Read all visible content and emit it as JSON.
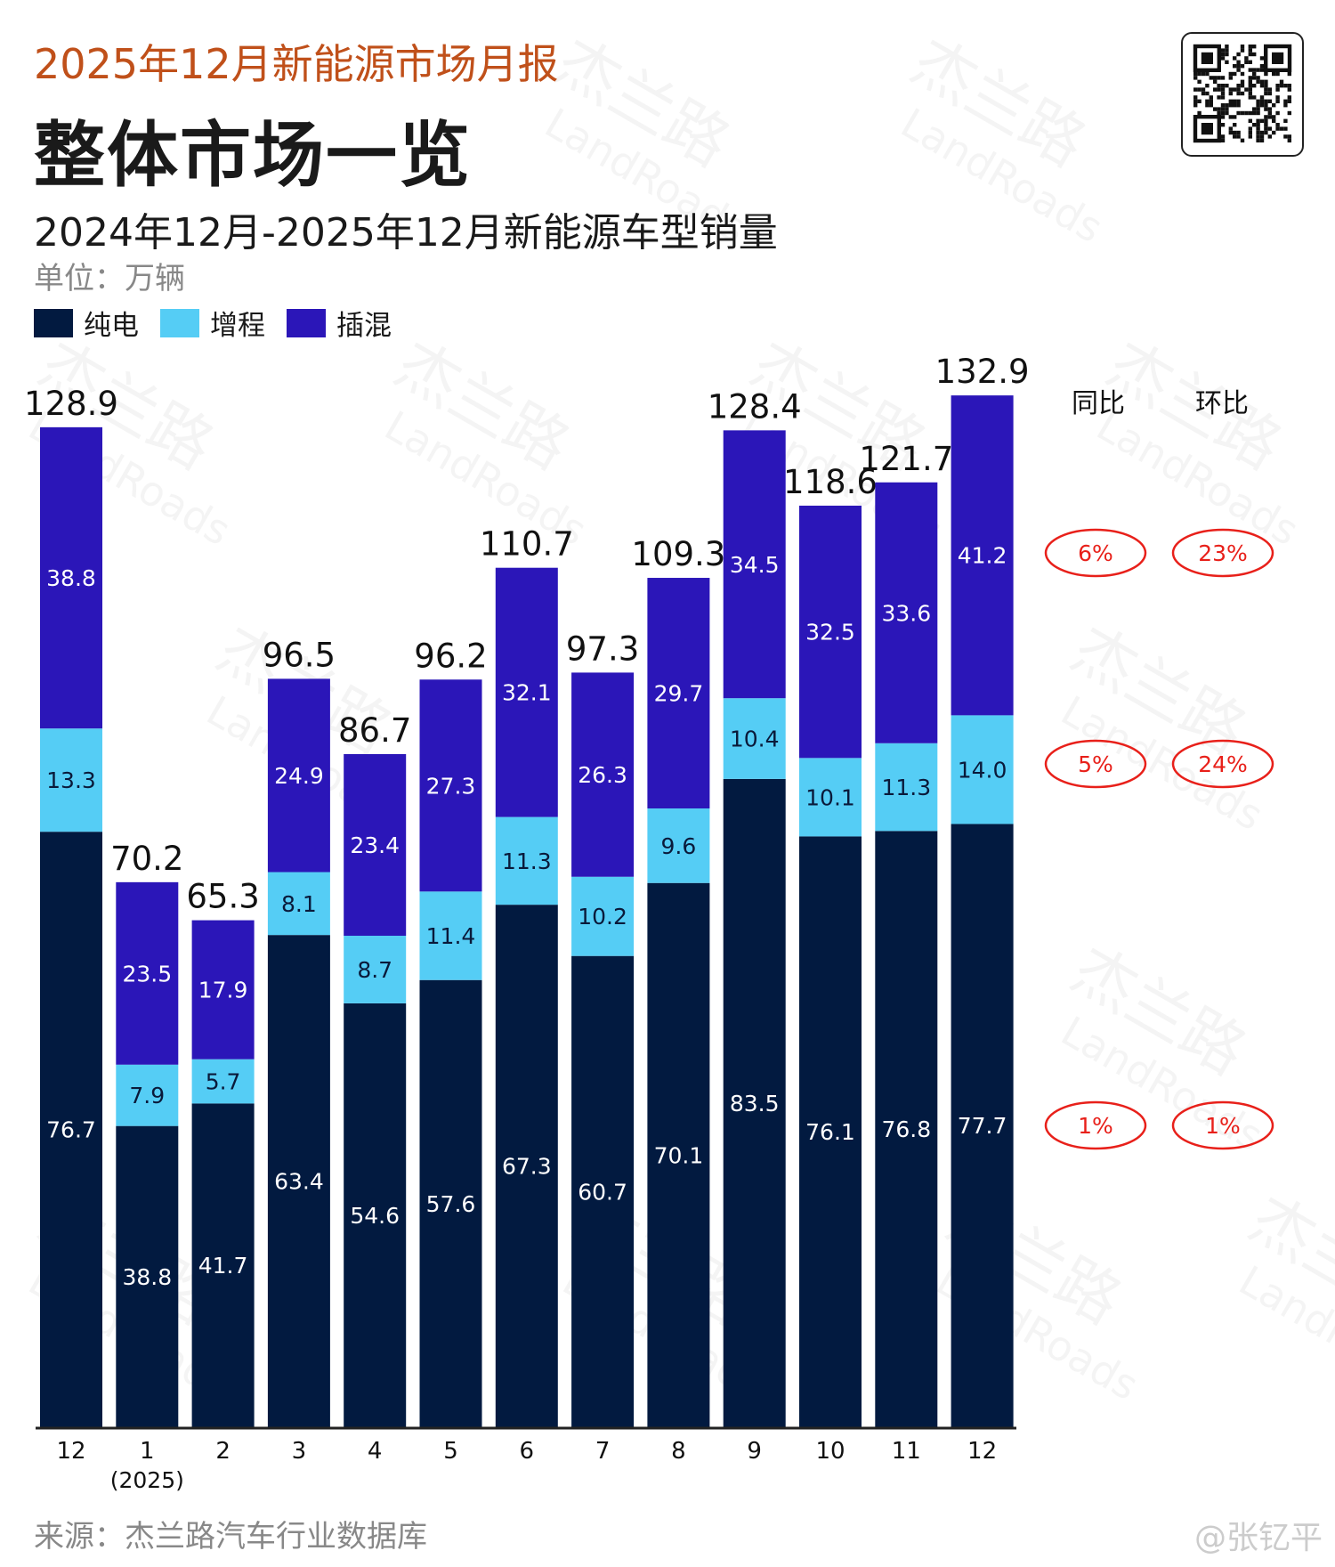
{
  "header": {
    "report_title": "2025年12月新能源市场月报",
    "main_title": "整体市场一览",
    "chart_title": "2024年12月-2025年12月新能源车型销量",
    "unit": "单位：万辆"
  },
  "legend": [
    {
      "label": "纯电",
      "color": "#021a40"
    },
    {
      "label": "增程",
      "color": "#55cdf5"
    },
    {
      "label": "插混",
      "color": "#2b16b8"
    }
  ],
  "comparison": {
    "yoy_label": "同比",
    "mom_label": "环比",
    "rows": [
      {
        "series": "插混",
        "yoy": "6%",
        "mom": "23%"
      },
      {
        "series": "增程",
        "yoy": "5%",
        "mom": "24%"
      },
      {
        "series": "纯电",
        "yoy": "1%",
        "mom": "1%"
      }
    ],
    "circle_color": "#e8201a"
  },
  "chart_data": {
    "type": "bar",
    "stacked": true,
    "categories": [
      "12",
      "1",
      "2",
      "3",
      "4",
      "5",
      "6",
      "7",
      "8",
      "9",
      "10",
      "11",
      "12"
    ],
    "category_sublabels": [
      "",
      "(2025)",
      "",
      "",
      "",
      "",
      "",
      "",
      "",
      "",
      "",
      "",
      ""
    ],
    "series": [
      {
        "name": "纯电",
        "color": "#021a40",
        "values": [
          76.7,
          38.8,
          41.7,
          63.4,
          54.6,
          57.6,
          67.3,
          60.7,
          70.1,
          83.5,
          76.1,
          76.8,
          77.7
        ]
      },
      {
        "name": "增程",
        "color": "#55cdf5",
        "values": [
          13.3,
          7.9,
          5.7,
          8.1,
          8.7,
          11.4,
          11.3,
          10.2,
          9.6,
          10.4,
          10.1,
          11.3,
          14.0
        ]
      },
      {
        "name": "插混",
        "color": "#2b16b8",
        "values": [
          38.8,
          23.5,
          17.9,
          24.9,
          23.4,
          27.3,
          32.1,
          26.3,
          29.7,
          34.5,
          32.5,
          33.6,
          41.2
        ]
      }
    ],
    "totals": [
      "128.9",
      "70.2",
      "65.3",
      "96.5",
      "86.7",
      "96.2",
      "110.7",
      "97.3",
      "109.3",
      "128.4",
      "118.6",
      "121.7",
      "132.9"
    ],
    "labels": [
      [
        "76.7",
        "38.8",
        "41.7",
        "63.4",
        "54.6",
        "57.6",
        "67.3",
        "60.7",
        "70.1",
        "83.5",
        "76.1",
        "76.8",
        "77.7"
      ],
      [
        "13.3",
        "7.9",
        "5.7",
        "8.1",
        "8.7",
        "11.4",
        "11.3",
        "10.2",
        "9.6",
        "10.4",
        "10.1",
        "11.3",
        "14.0"
      ],
      [
        "38.8",
        "23.5",
        "17.9",
        "24.9",
        "23.4",
        "27.3",
        "32.1",
        "26.3",
        "29.7",
        "34.5",
        "32.5",
        "33.6",
        "41.2"
      ]
    ],
    "ylim": [
      0,
      132.9
    ],
    "grid": false,
    "legend_position": "top-left"
  },
  "footer": {
    "source": "来源：杰兰路汽车行业数据库",
    "weibo": "@张钇平"
  },
  "watermark": {
    "cn": "杰兰路",
    "en": "LandRoads"
  }
}
